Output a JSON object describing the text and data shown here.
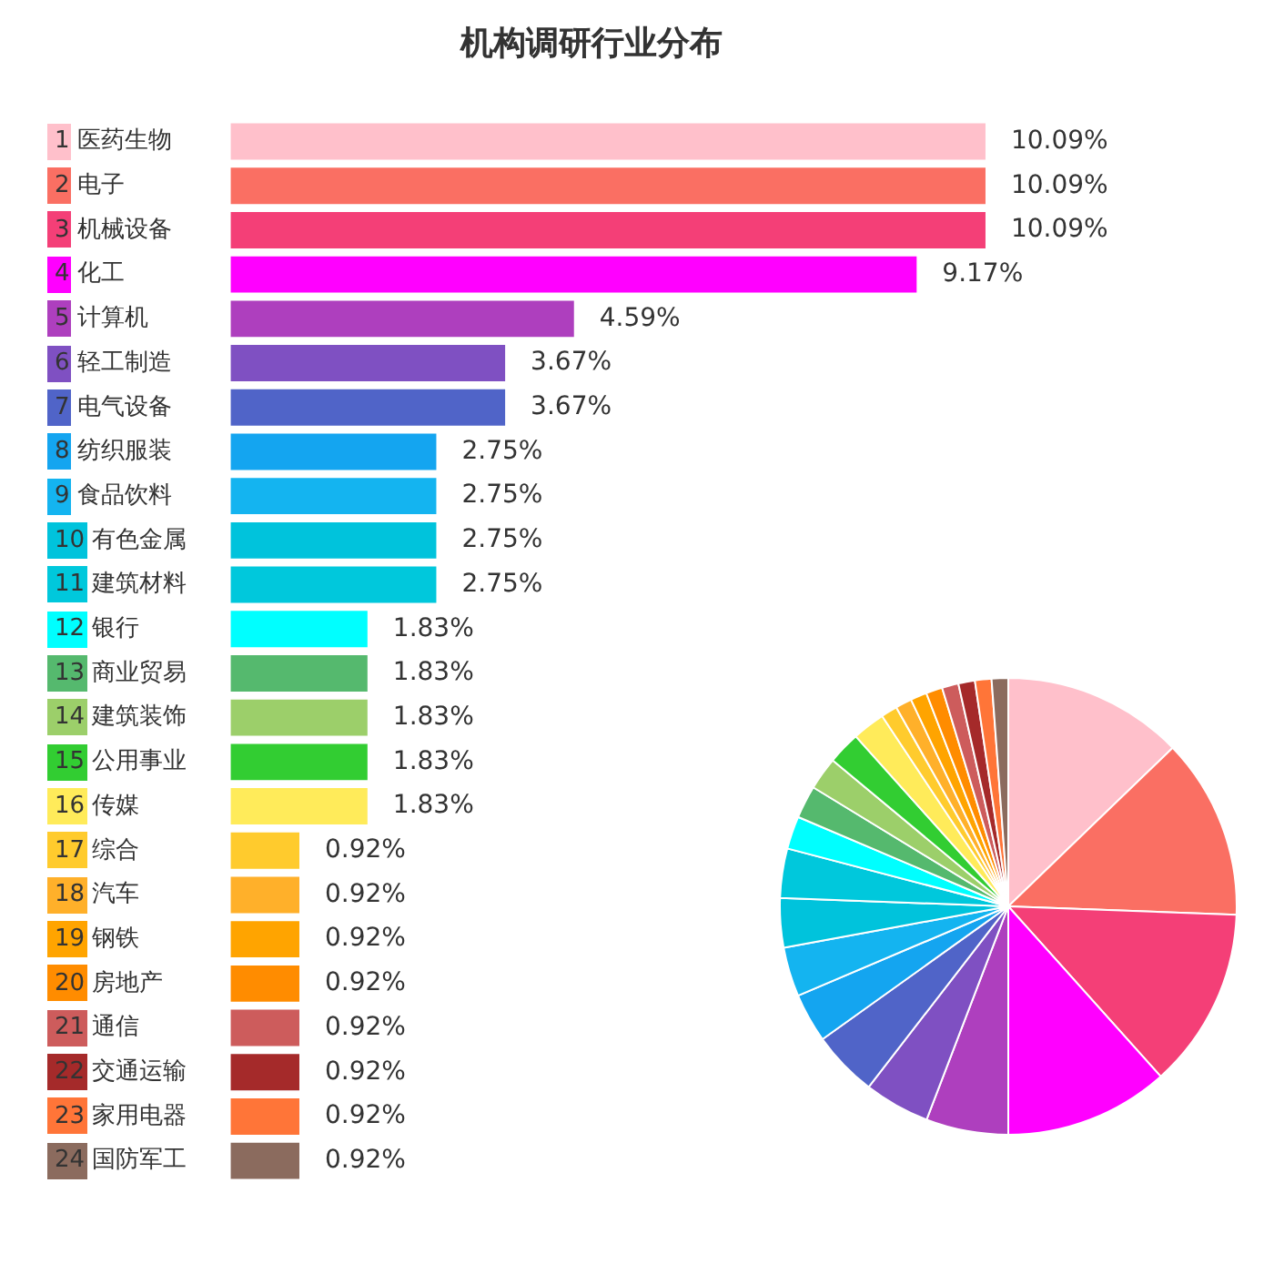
{
  "chart_data": [
    {
      "type": "bar",
      "title": "机构调研行业分布",
      "orientation": "horizontal",
      "tick_labels": "y",
      "categories": [
        "1 医药生物",
        "2 电子",
        "3 机械设备",
        "4 化工",
        "5 计算机",
        "6 轻工制造",
        "7 电气设备",
        "8 纺织服装",
        "9 食品饮料",
        "10 有色金属",
        "11 建筑材料",
        "12 银行",
        "13 商业贸易",
        "14 建筑装饰",
        "15 公用事业",
        "16 传媒",
        "17 综合",
        "18 汽车",
        "19 钢铁",
        "20 房地产",
        "21 通信",
        "22 交通运输",
        "23 家用电器",
        "24 国防军工"
      ],
      "values": [
        10.09,
        10.09,
        10.09,
        9.17,
        4.59,
        3.67,
        3.67,
        2.75,
        2.75,
        2.75,
        2.75,
        1.83,
        1.83,
        1.83,
        1.83,
        1.83,
        0.92,
        0.92,
        0.92,
        0.92,
        0.92,
        0.92,
        0.92,
        0.92
      ],
      "value_labels": [
        "10.09%",
        "10.09%",
        "10.09%",
        "9.17%",
        "4.59%",
        "3.67%",
        "3.67%",
        "2.75%",
        "2.75%",
        "2.75%",
        "2.75%",
        "1.83%",
        "1.83%",
        "1.83%",
        "1.83%",
        "1.83%",
        "0.92%",
        "0.92%",
        "0.92%",
        "0.92%",
        "0.92%",
        "0.92%",
        "0.92%",
        "0.92%"
      ],
      "colors": [
        "#ffc0cb",
        "#fa6f63",
        "#f43f77",
        "#ff00ff",
        "#ae3fbe",
        "#7f50c2",
        "#5064c8",
        "#14a5f0",
        "#14b4f0",
        "#00c3dc",
        "#00c8dc",
        "#00ffff",
        "#55b96e",
        "#9ccf6a",
        "#32cd32",
        "#ffeb5a",
        "#ffcb2d",
        "#ffb02a",
        "#ffa400",
        "#ff8c00",
        "#cd5c5c",
        "#a52a2a",
        "#ff7538",
        "#8b6b5e"
      ],
      "legend": false
    },
    {
      "type": "pie",
      "categories": [
        null,
        null,
        null,
        null,
        null,
        null,
        null,
        null,
        null,
        null,
        null,
        null,
        null,
        null,
        null,
        null,
        null,
        null,
        null,
        null,
        null,
        null,
        null,
        null
      ],
      "values": [
        12.79,
        12.79,
        12.79,
        11.63,
        5.82,
        4.65,
        4.65,
        3.49,
        3.49,
        3.49,
        3.49,
        2.32,
        2.32,
        2.32,
        2.32,
        2.32,
        1.16,
        1.16,
        1.16,
        1.16,
        1.17,
        1.17,
        1.17,
        1.17
      ],
      "colors": [
        "#ffc0cb",
        "#fa6f63",
        "#f43f77",
        "#ff00ff",
        "#ae3fbe",
        "#7f50c2",
        "#5064c8",
        "#14a5f0",
        "#14b4f0",
        "#00c3dc",
        "#00c8dc",
        "#00ffff",
        "#55b96e",
        "#9ccf6a",
        "#32cd32",
        "#ffeb5a",
        "#ffcb2d",
        "#ffb02a",
        "#ffa400",
        "#ff8c00",
        "#cd5c5c",
        "#a52a2a",
        "#ff7538",
        "#8b6b5e"
      ],
      "legend": false
    }
  ]
}
